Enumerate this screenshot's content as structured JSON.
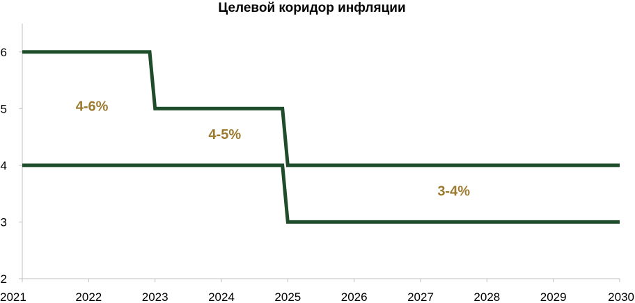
{
  "chart_data": {
    "type": "line",
    "title": "Целевой коридор инфляции",
    "xlabel": "",
    "ylabel": "",
    "xlim": [
      2021,
      2030
    ],
    "ylim": [
      2,
      6.5
    ],
    "x_ticks": [
      "2021",
      "2022",
      "2023",
      "2024",
      "2025",
      "2026",
      "2027",
      "2028",
      "2029",
      "2030"
    ],
    "y_ticks": [
      "2",
      "3",
      "4",
      "5",
      "6"
    ],
    "grid": false,
    "legend": "none",
    "series": [
      {
        "color": "#1f4d2b",
        "x": [
          2021,
          2022.92,
          2023.0,
          2024.92,
          2025.0,
          2030
        ],
        "y": [
          6,
          6,
          5,
          5,
          4,
          4
        ]
      },
      {
        "color": "#1f4d2b",
        "x": [
          2021,
          2024.92,
          2025.0,
          2030
        ],
        "y": [
          4,
          4,
          3,
          3
        ]
      }
    ],
    "annotations": [
      {
        "text": "4-6%",
        "x": 2022.05,
        "y": 5.05,
        "color": "#9c7a2f"
      },
      {
        "text": "4-5%",
        "x": 2024.05,
        "y": 4.55,
        "color": "#9c7a2f"
      },
      {
        "text": "3-4%",
        "x": 2027.5,
        "y": 3.55,
        "color": "#9c7a2f"
      }
    ]
  }
}
